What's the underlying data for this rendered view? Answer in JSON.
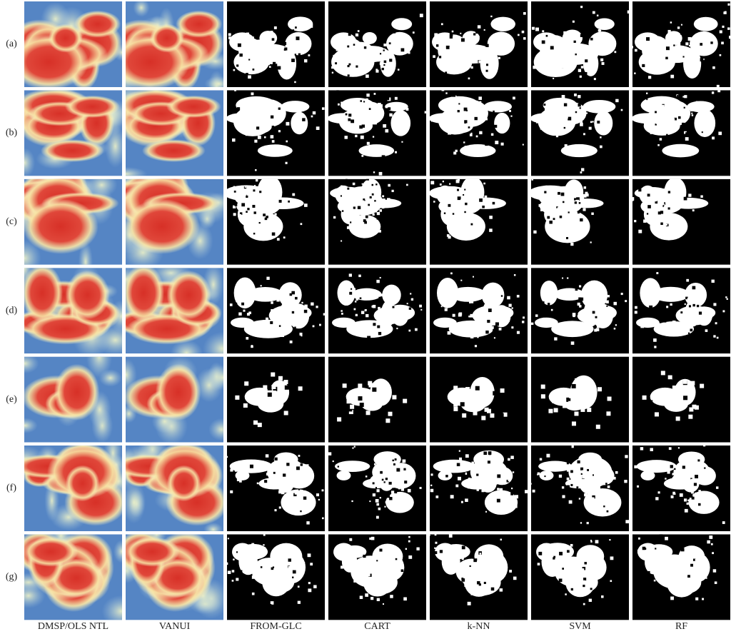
{
  "row_labels": [
    "(a)",
    "(b)",
    "(c)",
    "(d)",
    "(e)",
    "(f)",
    "(g)"
  ],
  "column_labels": [
    "DMSP/OLS NTL",
    "VANUI",
    "FROM-GLC",
    "CART",
    "k-NN",
    "SVM",
    "RF"
  ]
}
